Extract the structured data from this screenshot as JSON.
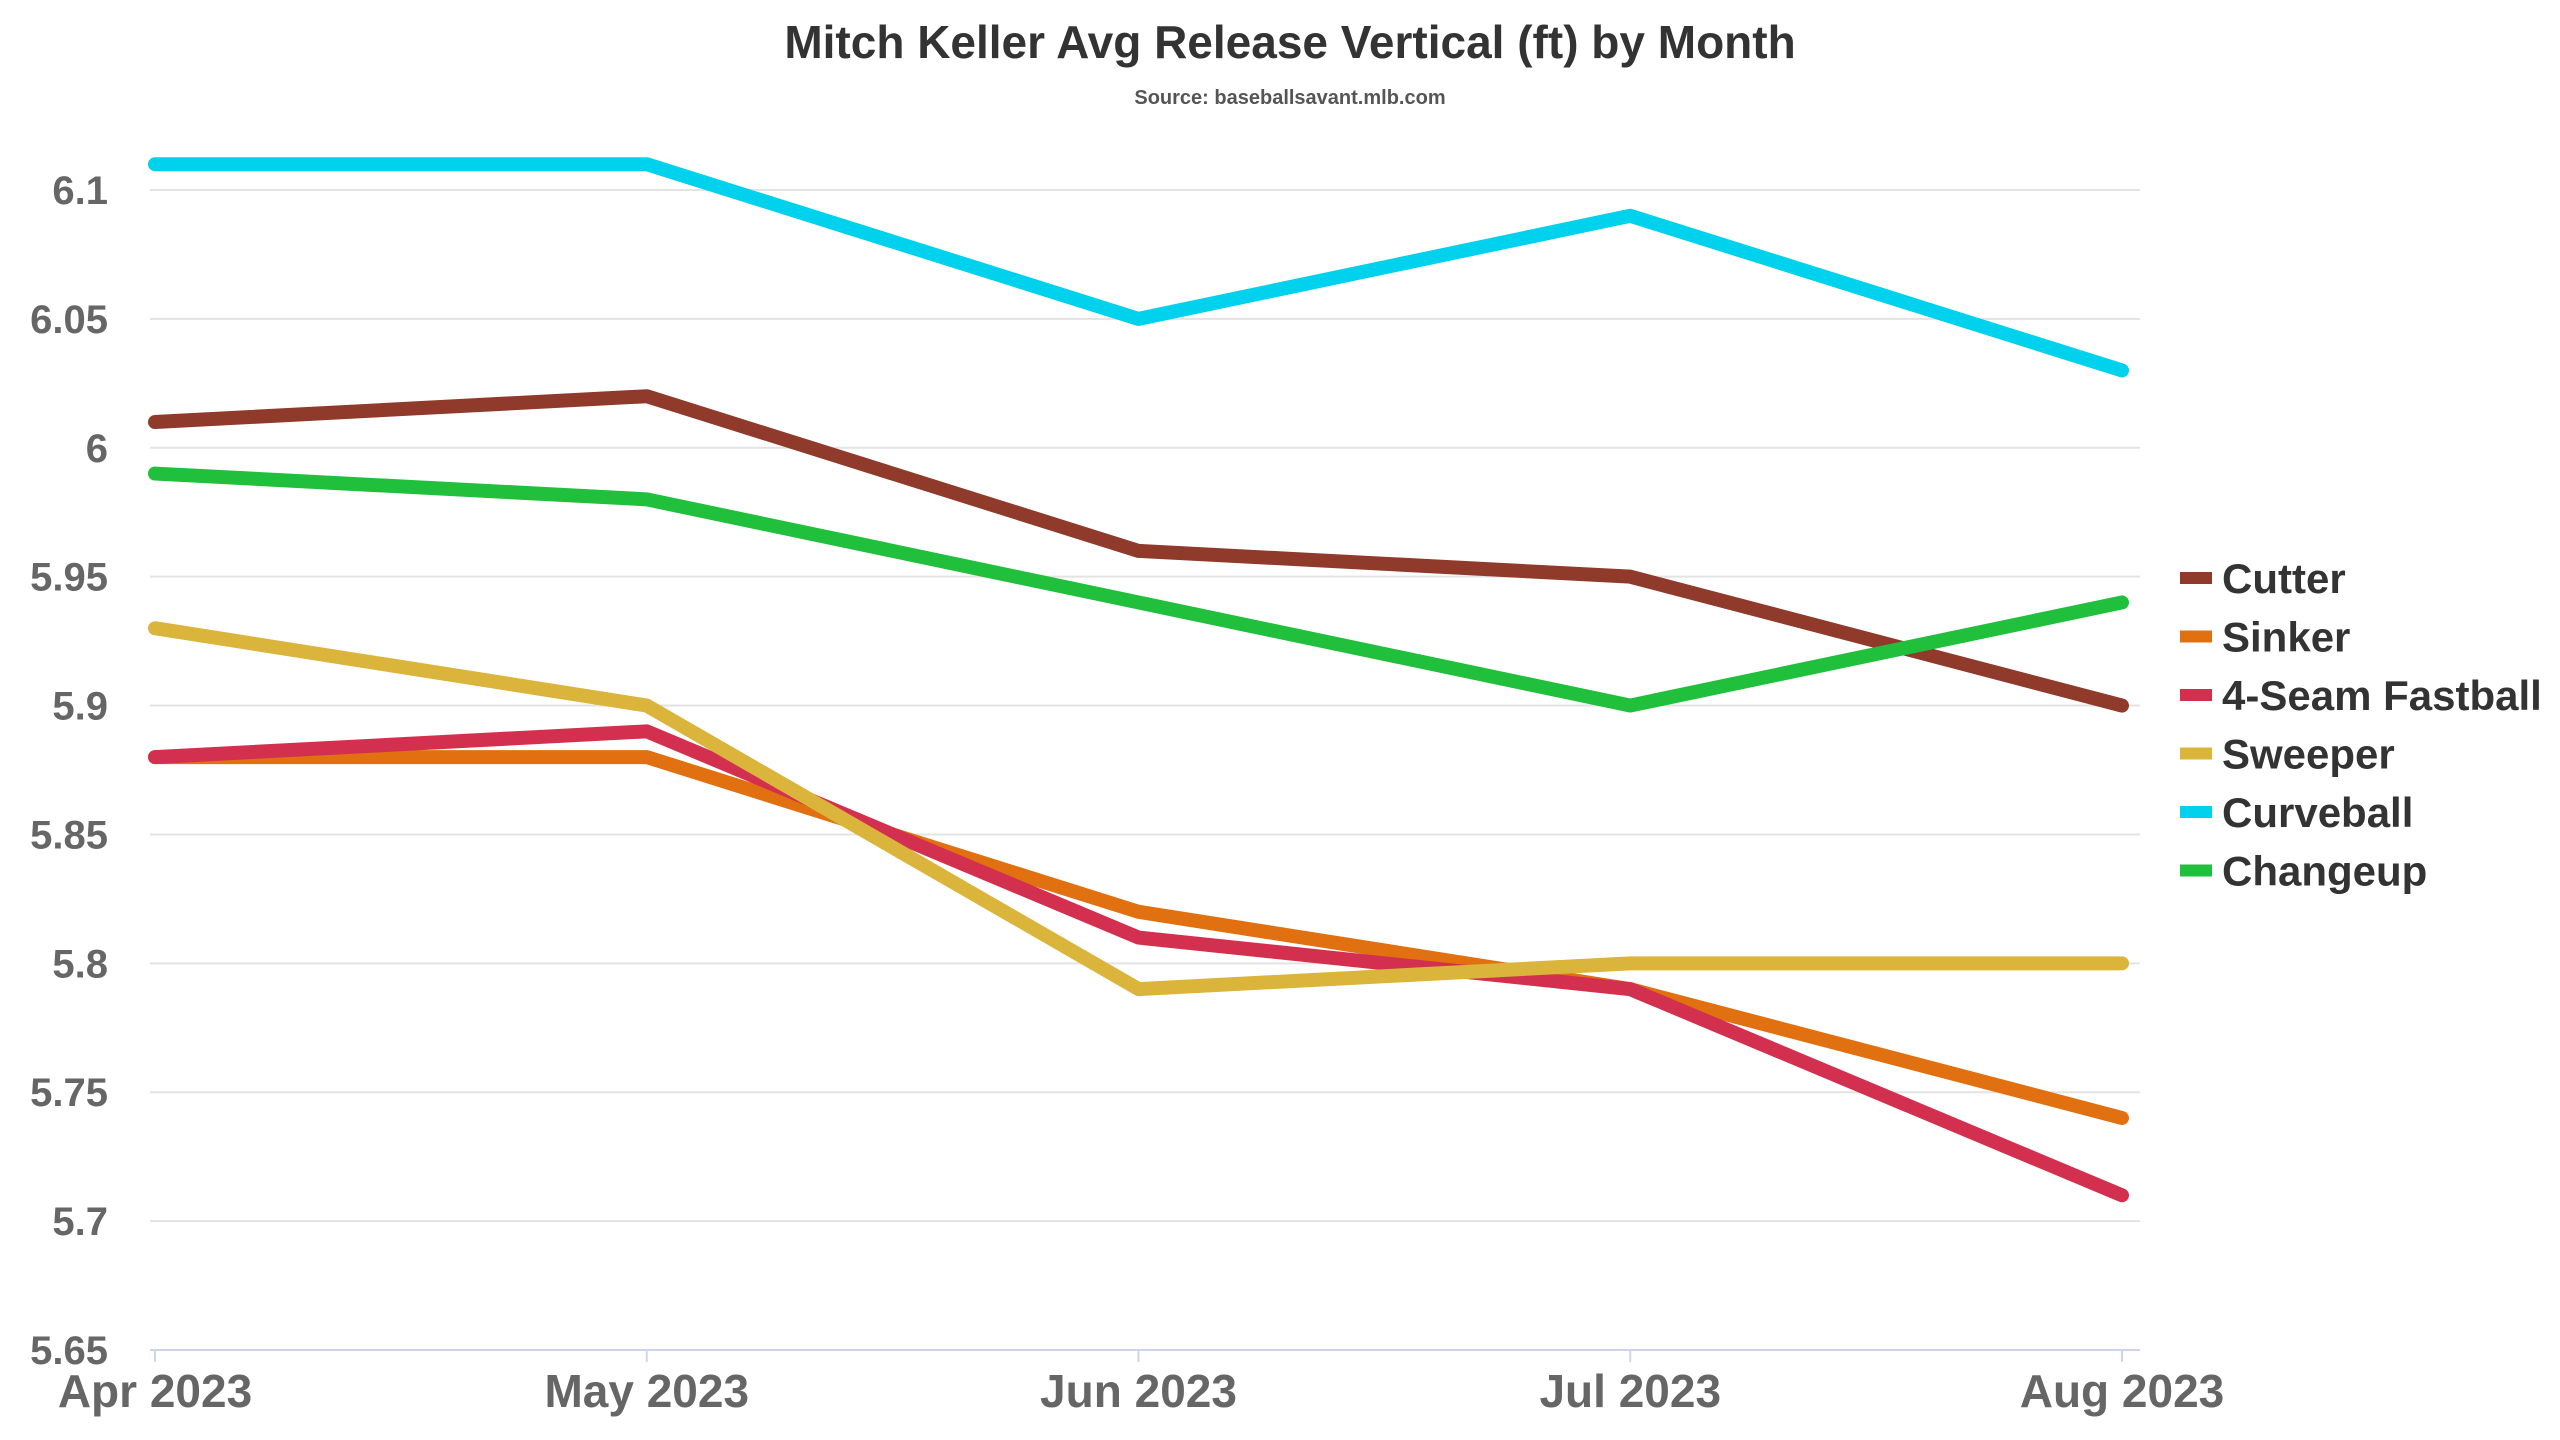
{
  "chart_data": {
    "type": "line",
    "title": "Mitch Keller Avg Release Vertical (ft) by Month",
    "subtitle": "Source: baseballsavant.mlb.com",
    "categories": [
      "Apr 2023",
      "May 2023",
      "Jun 2023",
      "Jul 2023",
      "Aug 2023"
    ],
    "ylim": [
      5.65,
      6.1
    ],
    "yticks": [
      "5.65",
      "5.7",
      "5.75",
      "5.8",
      "5.85",
      "5.9",
      "5.95",
      "6",
      "6.05",
      "6.1"
    ],
    "grid": true,
    "legend_position": "right",
    "series": [
      {
        "name": "Cutter",
        "color": "#8f3a2a",
        "values": [
          6.01,
          6.02,
          5.96,
          5.95,
          5.9
        ]
      },
      {
        "name": "Sinker",
        "color": "#e07010",
        "values": [
          5.88,
          5.88,
          5.82,
          5.79,
          5.74
        ]
      },
      {
        "name": "4-Seam Fastball",
        "color": "#d3304f",
        "values": [
          5.88,
          5.89,
          5.81,
          5.79,
          5.71
        ]
      },
      {
        "name": "Sweeper",
        "color": "#dbb43c",
        "values": [
          5.93,
          5.9,
          5.79,
          5.8,
          5.8
        ]
      },
      {
        "name": "Curveball",
        "color": "#00d1ec",
        "values": [
          6.11,
          6.11,
          6.05,
          6.09,
          6.03
        ]
      },
      {
        "name": "Changeup",
        "color": "#20bf3c",
        "values": [
          5.99,
          5.98,
          5.94,
          5.9,
          5.94
        ]
      }
    ]
  }
}
